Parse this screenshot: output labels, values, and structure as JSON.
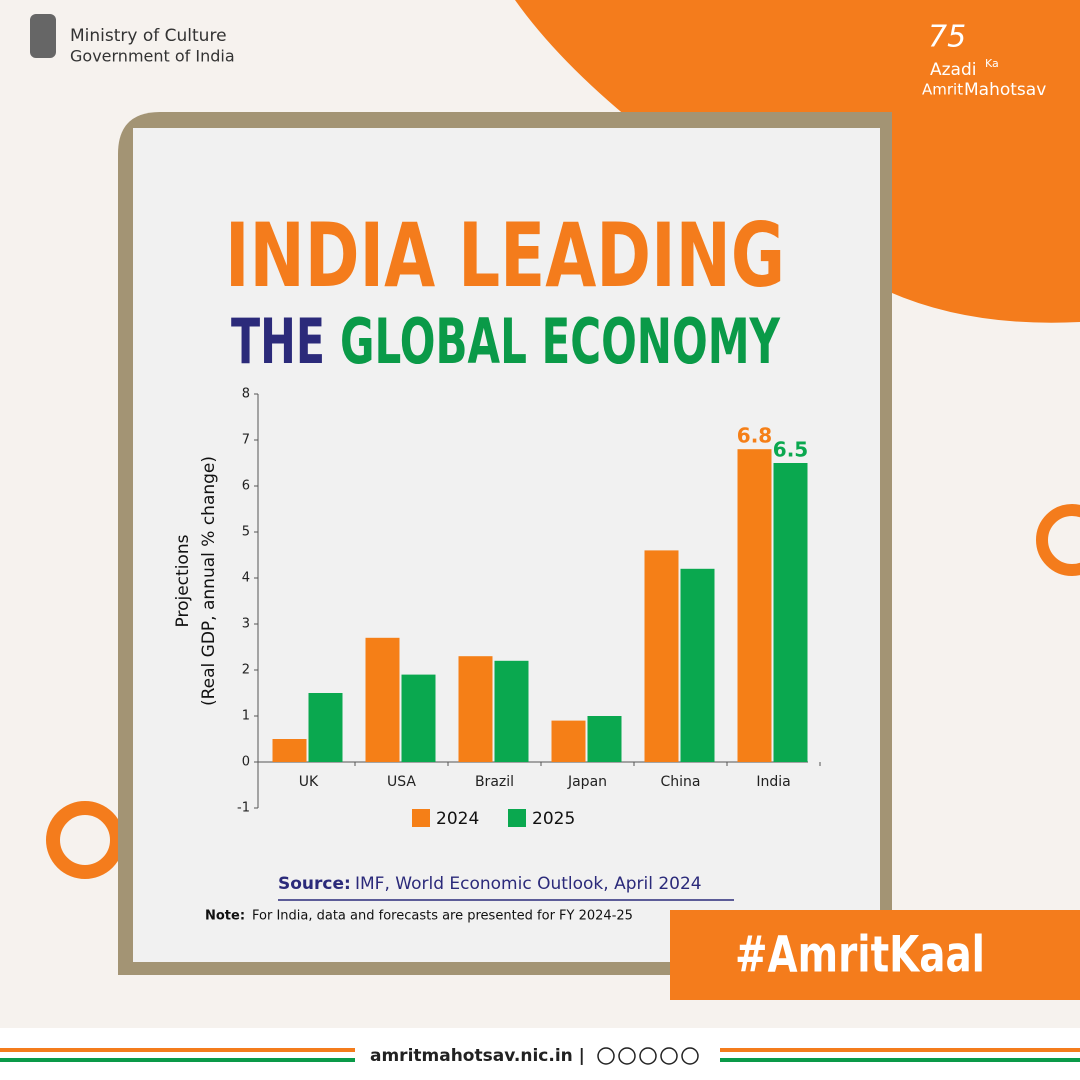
{
  "header": {
    "ministry": "Ministry of Culture",
    "government": "Government of India"
  },
  "logo": {
    "number": "75",
    "line1": "Azadi",
    "line1b": "Ka",
    "line2": "Amrit",
    "line2b": "Mahotsav"
  },
  "title": {
    "line1": "INDIA LEADING",
    "line2a": "THE",
    "line2b": "GLOBAL ECONOMY"
  },
  "chart_data": {
    "type": "bar",
    "y_label": [
      "Projections",
      "(Real GDP, annual % change)"
    ],
    "categories": [
      "UK",
      "USA",
      "Brazil",
      "Japan",
      "China",
      "India"
    ],
    "series": [
      {
        "name": "2024",
        "color": "#f57f17",
        "values": [
          0.5,
          2.7,
          2.3,
          0.9,
          4.6,
          6.8
        ]
      },
      {
        "name": "2025",
        "color": "#0aa84f",
        "values": [
          1.5,
          1.9,
          2.2,
          1.0,
          4.2,
          6.5
        ]
      }
    ],
    "labeled_category": 5,
    "ylim": [
      -1,
      8
    ],
    "yticks": [
      -1,
      0,
      1,
      2,
      3,
      4,
      5,
      6,
      7,
      8
    ]
  },
  "source": {
    "label": "Source:",
    "text": "IMF, World Economic Outlook, April 2024"
  },
  "note": {
    "label": "Note:",
    "text": "For India, data and forecasts are presented for FY 2024-25"
  },
  "hashtag": "#AmritKaal",
  "footer": {
    "website": "amritmahotsav.nic.in |"
  }
}
